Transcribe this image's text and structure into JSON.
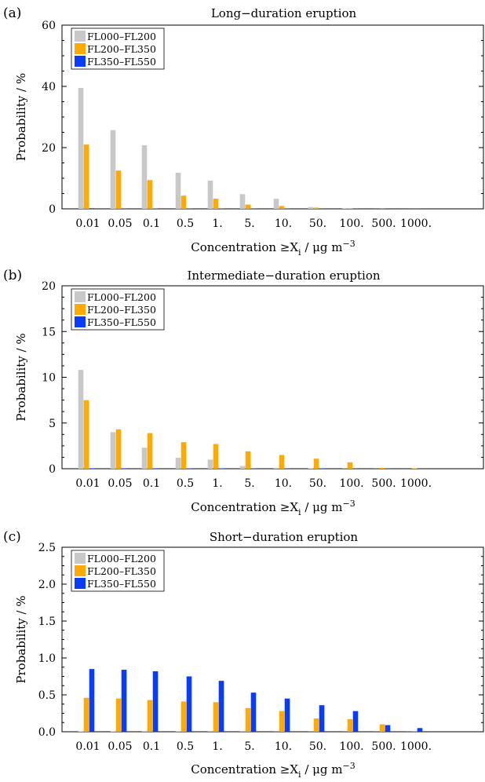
{
  "chart_data": [
    {
      "type": "bar",
      "panel_label": "(a)",
      "title": "Long−duration eruption",
      "xlabel": {
        "prefix": "Concentration ≥X",
        "sub": "i",
        "mid": " / μg m",
        "sup": "−3"
      },
      "ylabel": "Probability / %",
      "ylim": [
        0,
        60
      ],
      "yticks": [
        "0",
        "20",
        "40",
        "60"
      ],
      "categories": [
        "0.01",
        "0.05",
        "0.1",
        "0.5",
        "1.",
        "5.",
        "10.",
        "50.",
        "100.",
        "500.",
        "1000."
      ],
      "legend_position": "top-left",
      "series": [
        {
          "name": "FL000–FL200",
          "color": "#c8c8c8",
          "values": [
            39.5,
            25.7,
            20.8,
            11.8,
            9.2,
            4.8,
            3.3,
            0.6,
            0.1,
            0.02,
            0.01
          ]
        },
        {
          "name": "FL200–FL350",
          "color": "#ffaa00",
          "values": [
            21.0,
            12.5,
            9.4,
            4.3,
            3.3,
            1.4,
            0.9,
            0.4,
            0.1,
            0.05,
            0.02
          ]
        },
        {
          "name": "FL350–FL550",
          "color": "#0a3cff",
          "values": [
            0.2,
            0.15,
            0.12,
            0.1,
            0.1,
            0.08,
            0.07,
            0.05,
            0.04,
            0.03,
            0.02
          ]
        }
      ]
    },
    {
      "type": "bar",
      "panel_label": "(b)",
      "title": "Intermediate−duration eruption",
      "xlabel": {
        "prefix": "Concentration ≥X",
        "sub": "i",
        "mid": " / μg m",
        "sup": "−3"
      },
      "ylabel": "Probability / %",
      "ylim": [
        0,
        20
      ],
      "yticks": [
        "0",
        "5",
        "10",
        "15",
        "20"
      ],
      "categories": [
        "0.01",
        "0.05",
        "0.1",
        "0.5",
        "1.",
        "5.",
        "10.",
        "50.",
        "100.",
        "500.",
        "1000."
      ],
      "legend_position": "top-left",
      "series": [
        {
          "name": "FL000–FL200",
          "color": "#c8c8c8",
          "values": [
            10.8,
            4.0,
            2.3,
            1.2,
            1.0,
            0.3,
            0.1,
            0.05,
            0.02,
            0.01,
            0.0
          ]
        },
        {
          "name": "FL200–FL350",
          "color": "#ffaa00",
          "values": [
            7.5,
            4.3,
            3.9,
            2.9,
            2.7,
            1.9,
            1.5,
            1.1,
            0.7,
            0.1,
            0.05
          ]
        },
        {
          "name": "FL350–FL550",
          "color": "#0a3cff",
          "values": [
            0.05,
            0.05,
            0.05,
            0.04,
            0.04,
            0.03,
            0.03,
            0.03,
            0.02,
            0.02,
            0.01
          ]
        }
      ]
    },
    {
      "type": "bar",
      "panel_label": "(c)",
      "title": "Short−duration eruption",
      "xlabel": {
        "prefix": "Concentration ≥X",
        "sub": "i",
        "mid": " / μg m",
        "sup": "−3"
      },
      "ylabel": "Probability / %",
      "ylim": [
        0,
        2.5
      ],
      "yticks": [
        "0.0",
        "0.5",
        "1.0",
        "1.5",
        "2.0",
        "2.5"
      ],
      "categories": [
        "0.01",
        "0.05",
        "0.1",
        "0.5",
        "1.",
        "5.",
        "10.",
        "50.",
        "100.",
        "500.",
        "1000."
      ],
      "legend_position": "top-left",
      "series": [
        {
          "name": "FL000–FL200",
          "color": "#c8c8c8",
          "values": [
            0.005,
            0.005,
            0.004,
            0.004,
            0.003,
            0.003,
            0.002,
            0.002,
            0.001,
            0.001,
            0.001
          ]
        },
        {
          "name": "FL200–FL350",
          "color": "#ffaa00",
          "values": [
            0.46,
            0.45,
            0.43,
            0.41,
            0.4,
            0.32,
            0.28,
            0.18,
            0.17,
            0.1,
            0.01
          ]
        },
        {
          "name": "FL350–FL550",
          "color": "#0a3cff",
          "values": [
            0.85,
            0.84,
            0.82,
            0.75,
            0.69,
            0.53,
            0.45,
            0.36,
            0.28,
            0.09,
            0.05
          ]
        }
      ]
    }
  ]
}
